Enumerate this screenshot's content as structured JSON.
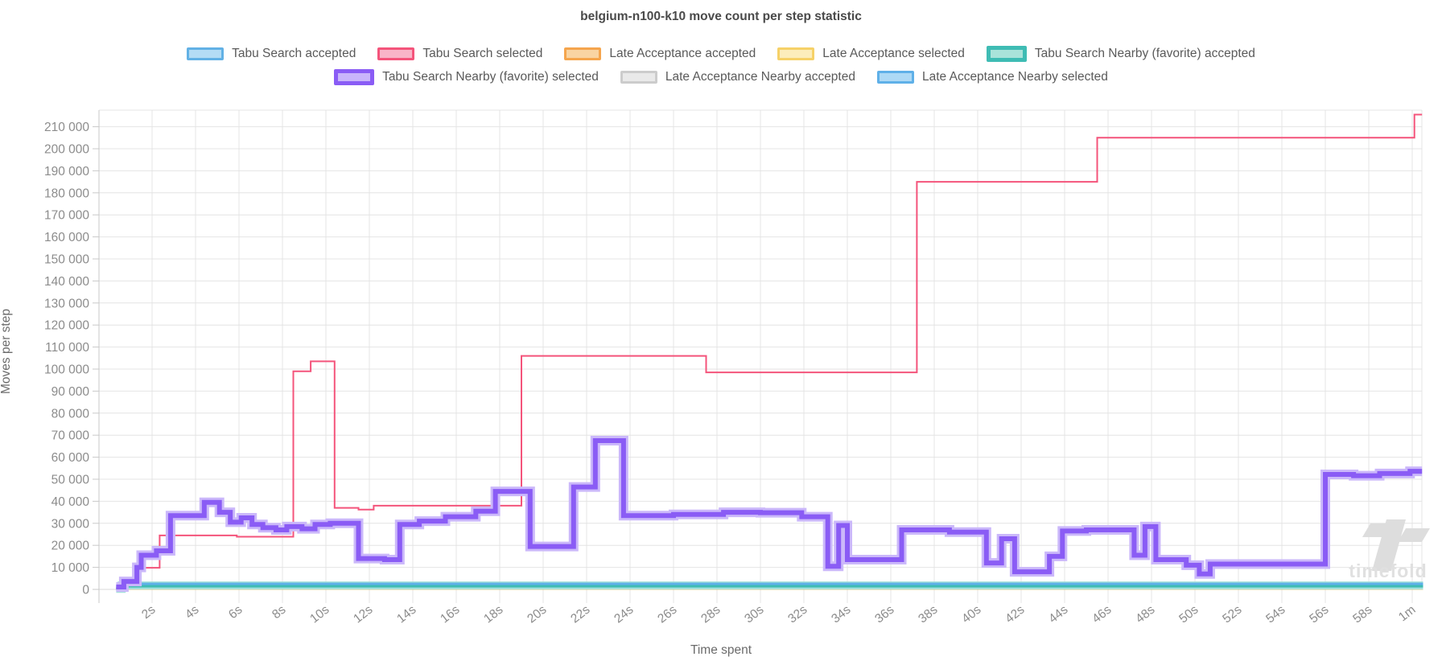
{
  "title": "belgium-n100-k10 move count per step statistic",
  "watermark": "timefold",
  "axes": {
    "x_label": "Time spent",
    "y_label": "Moves per step",
    "x_tick_labels": [
      "2s",
      "4s",
      "6s",
      "8s",
      "10s",
      "12s",
      "14s",
      "16s",
      "18s",
      "20s",
      "22s",
      "24s",
      "26s",
      "28s",
      "30s",
      "32s",
      "34s",
      "36s",
      "38s",
      "40s",
      "42s",
      "44s",
      "46s",
      "48s",
      "50s",
      "52s",
      "54s",
      "56s",
      "58s",
      "1m"
    ],
    "x_tick_seconds": [
      2,
      4,
      6,
      8,
      10,
      12,
      14,
      16,
      18,
      20,
      22,
      24,
      26,
      28,
      30,
      32,
      34,
      36,
      38,
      40,
      42,
      44,
      46,
      48,
      50,
      52,
      54,
      56,
      58,
      60
    ],
    "y_tick_labels": [
      "0",
      "10 000",
      "20 000",
      "30 000",
      "40 000",
      "50 000",
      "60 000",
      "70 000",
      "80 000",
      "90 000",
      "100 000",
      "110 000",
      "120 000",
      "130 000",
      "140 000",
      "150 000",
      "160 000",
      "170 000",
      "180 000",
      "190 000",
      "200 000",
      "210 000"
    ],
    "y_tick_step": 10000
  },
  "legend_rows": [
    [
      0,
      1,
      2,
      3,
      4
    ],
    [
      5,
      6,
      7
    ]
  ],
  "chart_data": {
    "type": "line",
    "step": true,
    "title": "belgium-n100-k10 move count per step statistic",
    "xlabel": "Time spent",
    "ylabel": "Moves per step",
    "x_unit": "seconds",
    "xlim": [
      0,
      60.6
    ],
    "ylim": [
      0,
      217500
    ],
    "grid": true,
    "legend_position": "top",
    "series": [
      {
        "name": "Tabu Search accepted",
        "line": "#62b1e5",
        "fill": "#b4dcf5",
        "width": 2.5,
        "end_t": 60.5,
        "points": [
          [
            0.35,
            500
          ],
          [
            0.7,
            2100
          ]
        ]
      },
      {
        "name": "Tabu Search selected",
        "line": "#f4547b",
        "fill": "#f9b4c8",
        "width": 2,
        "end_t": 60.45,
        "points": [
          [
            0.35,
            600
          ],
          [
            0.65,
            2200
          ],
          [
            1.3,
            9800
          ],
          [
            2.35,
            24500
          ],
          [
            5.9,
            23900
          ],
          [
            8.5,
            99000
          ],
          [
            9.3,
            103500
          ],
          [
            10.4,
            37000
          ],
          [
            11.5,
            36200
          ],
          [
            12.2,
            38000
          ],
          [
            19.0,
            106000
          ],
          [
            27.5,
            98500
          ],
          [
            37.2,
            185000
          ],
          [
            45.5,
            205000
          ],
          [
            60.1,
            215500
          ]
        ]
      },
      {
        "name": "Late Acceptance accepted",
        "line": "#f5a54d",
        "fill": "#f9d4a2",
        "width": 2.5,
        "end_t": 60.5,
        "points": [
          [
            0.35,
            400
          ]
        ]
      },
      {
        "name": "Late Acceptance selected",
        "line": "#f6d168",
        "fill": "#fcedbb",
        "width": 2,
        "end_t": 60.5,
        "points": [
          [
            0.35,
            200
          ]
        ]
      },
      {
        "name": "Tabu Search Nearby (favorite) accepted",
        "line": "#3fbcb4",
        "fill": "#aae3da",
        "width": 5,
        "halo": "#a5e0da",
        "halo_width": 10,
        "end_t": 60.5,
        "points": [
          [
            0.35,
            300
          ],
          [
            0.6,
            1800
          ]
        ]
      },
      {
        "name": "Tabu Search Nearby (favorite) selected",
        "line": "#8a5cf5",
        "fill": "#c9b5fb",
        "width": 6,
        "halo": "#cbb8fa",
        "halo_width": 12,
        "end_t": 60.45,
        "points": [
          [
            0.35,
            1100
          ],
          [
            0.7,
            3600
          ],
          [
            1.3,
            10000
          ],
          [
            1.5,
            15500
          ],
          [
            2.2,
            17500
          ],
          [
            2.85,
            33500
          ],
          [
            4.4,
            39500
          ],
          [
            5.1,
            35000
          ],
          [
            5.6,
            30500
          ],
          [
            6.1,
            32500
          ],
          [
            6.6,
            29500
          ],
          [
            7.1,
            28000
          ],
          [
            7.7,
            27000
          ],
          [
            8.2,
            28500
          ],
          [
            8.9,
            27500
          ],
          [
            9.5,
            29500
          ],
          [
            10.2,
            30000
          ],
          [
            11.5,
            14000
          ],
          [
            12.7,
            13500
          ],
          [
            13.4,
            29500
          ],
          [
            14.3,
            31000
          ],
          [
            15.5,
            33000
          ],
          [
            16.9,
            35500
          ],
          [
            17.8,
            44500
          ],
          [
            19.4,
            19500
          ],
          [
            21.4,
            46500
          ],
          [
            22.4,
            67500
          ],
          [
            23.7,
            33500
          ],
          [
            26.0,
            34000
          ],
          [
            28.3,
            35000
          ],
          [
            30.0,
            34800
          ],
          [
            31.9,
            33000
          ],
          [
            33.1,
            10500
          ],
          [
            33.6,
            29000
          ],
          [
            34.0,
            13500
          ],
          [
            36.5,
            27000
          ],
          [
            38.7,
            26000
          ],
          [
            40.4,
            12000
          ],
          [
            41.1,
            23000
          ],
          [
            41.7,
            8000
          ],
          [
            43.3,
            15000
          ],
          [
            43.9,
            26500
          ],
          [
            45.0,
            27000
          ],
          [
            47.2,
            15500
          ],
          [
            47.7,
            28500
          ],
          [
            48.2,
            13500
          ],
          [
            49.6,
            11000
          ],
          [
            50.2,
            7000
          ],
          [
            50.7,
            11500
          ],
          [
            56.0,
            52200
          ],
          [
            57.3,
            51600
          ],
          [
            58.5,
            52600
          ],
          [
            59.9,
            53600
          ]
        ]
      },
      {
        "name": "Late Acceptance Nearby accepted",
        "line": "#cccccc",
        "fill": "#e9e9e9",
        "width": 2,
        "end_t": 60.5,
        "points": [
          [
            0.35,
            1300
          ]
        ]
      },
      {
        "name": "Late Acceptance Nearby selected",
        "line": "#5fb0e8",
        "fill": "#add9f5",
        "width": 3,
        "end_t": 60.5,
        "points": [
          [
            0.35,
            700
          ],
          [
            0.8,
            2500
          ]
        ]
      }
    ]
  }
}
